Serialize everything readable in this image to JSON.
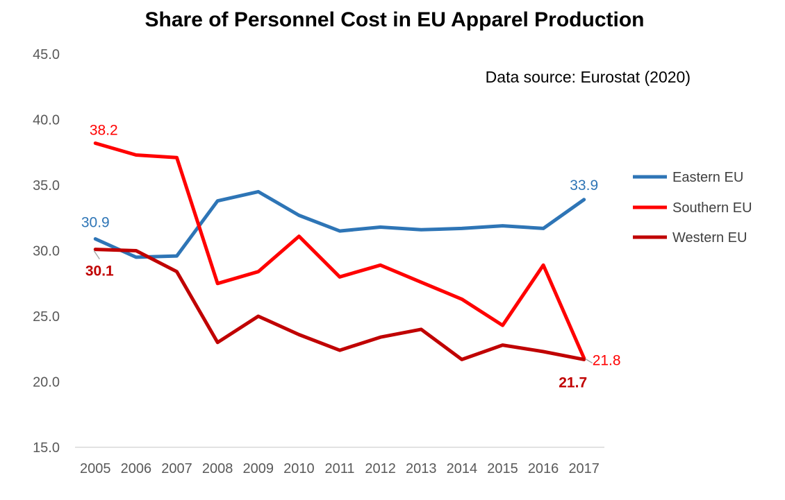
{
  "chart_data": {
    "type": "line",
    "title": "Share of Personnel Cost in EU Apparel Production",
    "annotation": "Data source: Eurostat (2020)",
    "xlabel": "",
    "ylabel": "",
    "ylim": [
      15,
      45
    ],
    "yticks": [
      "15.0",
      "20.0",
      "25.0",
      "30.0",
      "35.0",
      "40.0",
      "45.0"
    ],
    "categories": [
      "2005",
      "2006",
      "2007",
      "2008",
      "2009",
      "2010",
      "2011",
      "2012",
      "2013",
      "2014",
      "2015",
      "2016",
      "2017"
    ],
    "legend_position": "right",
    "series": [
      {
        "name": "Eastern EU",
        "color": "#2E75B6",
        "values": [
          30.9,
          29.5,
          29.6,
          33.8,
          34.5,
          32.7,
          31.5,
          31.8,
          31.6,
          31.7,
          31.9,
          31.7,
          33.9
        ],
        "labels": [
          {
            "index": 0,
            "text": "30.9",
            "bold": false
          },
          {
            "index": 12,
            "text": "33.9",
            "bold": false
          }
        ]
      },
      {
        "name": "Southern EU",
        "color": "#FF0000",
        "values": [
          38.2,
          37.3,
          37.1,
          27.5,
          28.4,
          31.1,
          28.0,
          28.9,
          27.6,
          26.3,
          24.3,
          28.9,
          21.8
        ],
        "labels": [
          {
            "index": 0,
            "text": "38.2",
            "bold": false
          },
          {
            "index": 12,
            "text": "21.8",
            "bold": false
          }
        ]
      },
      {
        "name": "Western EU",
        "color": "#C00000",
        "values": [
          30.1,
          30.0,
          28.4,
          23.0,
          25.0,
          23.6,
          22.4,
          23.4,
          24.0,
          21.7,
          22.8,
          22.3,
          21.7
        ],
        "labels": [
          {
            "index": 0,
            "text": "30.1",
            "bold": true
          },
          {
            "index": 12,
            "text": "21.7",
            "bold": true
          }
        ]
      }
    ]
  }
}
